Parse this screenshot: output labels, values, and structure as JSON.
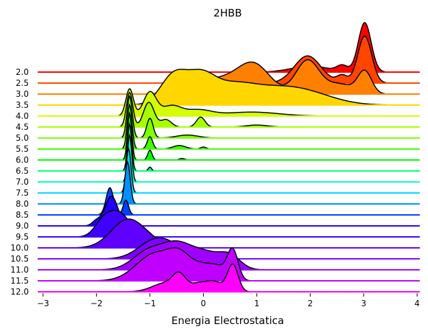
{
  "chart_data": {
    "type": "area",
    "subtype": "ridgeline",
    "title": "2HBB",
    "xlabel": "Energia Electrostatica",
    "ylabel": "",
    "xlim": [
      -3.1,
      4.05
    ],
    "xticks": [
      -3,
      -2,
      -1,
      0,
      1,
      2,
      3,
      4
    ],
    "xtick_labels": [
      "−3",
      "−2",
      "−1",
      "0",
      "1",
      "2",
      "3",
      "4"
    ],
    "grid": false,
    "legend": "none",
    "series": [
      {
        "name": "2.0",
        "color": "#ff0000",
        "peaks": [
          [
            2.0,
            0.35,
            0.12
          ],
          [
            3.02,
            0.12,
            1.0
          ],
          [
            2.6,
            0.1,
            0.12
          ]
        ]
      },
      {
        "name": "2.5",
        "color": "#ff4500",
        "peaks": [
          [
            1.95,
            0.25,
            0.55
          ],
          [
            3.02,
            0.13,
            0.95
          ],
          [
            2.6,
            0.1,
            0.15
          ]
        ]
      },
      {
        "name": "3.0",
        "color": "#ff8000",
        "peaks": [
          [
            0.25,
            0.45,
            0.3
          ],
          [
            0.95,
            0.3,
            0.55
          ],
          [
            1.95,
            0.22,
            0.68
          ],
          [
            2.55,
            0.25,
            0.2
          ],
          [
            3.02,
            0.13,
            0.45
          ]
        ]
      },
      {
        "name": "3.5",
        "color": "#ffd700",
        "peaks": [
          [
            -0.55,
            0.25,
            0.6
          ],
          [
            -0.05,
            0.25,
            0.45
          ],
          [
            0.5,
            0.45,
            0.38
          ],
          [
            1.45,
            0.55,
            0.3
          ],
          [
            2.1,
            0.5,
            0.12
          ]
        ]
      },
      {
        "name": "4.0",
        "color": "#d4ff00",
        "peaks": [
          [
            -1.38,
            0.07,
            0.55
          ],
          [
            -1.0,
            0.12,
            0.48
          ],
          [
            -0.6,
            0.18,
            0.2
          ],
          [
            -0.1,
            0.25,
            0.12
          ],
          [
            0.9,
            0.5,
            0.08
          ]
        ]
      },
      {
        "name": "4.5",
        "color": "#a8ff00",
        "peaks": [
          [
            -1.38,
            0.06,
            0.7
          ],
          [
            -1.02,
            0.1,
            0.5
          ],
          [
            -0.7,
            0.1,
            0.15
          ],
          [
            -0.05,
            0.08,
            0.2
          ],
          [
            1.0,
            0.2,
            0.04
          ]
        ]
      },
      {
        "name": "5.0",
        "color": "#7fff00",
        "peaks": [
          [
            -1.38,
            0.05,
            0.85
          ],
          [
            -1.0,
            0.06,
            0.4
          ],
          [
            -0.3,
            0.2,
            0.06
          ]
        ]
      },
      {
        "name": "5.5",
        "color": "#40ff00",
        "peaks": [
          [
            -1.38,
            0.045,
            0.9
          ],
          [
            -1.0,
            0.05,
            0.25
          ],
          [
            -0.45,
            0.12,
            0.07
          ],
          [
            0.0,
            0.05,
            0.04
          ]
        ]
      },
      {
        "name": "6.0",
        "color": "#00ff00",
        "peaks": [
          [
            -1.38,
            0.04,
            0.95
          ],
          [
            -1.0,
            0.04,
            0.2
          ],
          [
            -0.4,
            0.05,
            0.03
          ]
        ]
      },
      {
        "name": "6.5",
        "color": "#00ff80",
        "peaks": [
          [
            -1.38,
            0.04,
            0.95
          ],
          [
            -1.0,
            0.03,
            0.08
          ]
        ]
      },
      {
        "name": "7.0",
        "color": "#00ffc0",
        "peaks": [
          [
            -1.38,
            0.04,
            0.95
          ]
        ]
      },
      {
        "name": "7.5",
        "color": "#00d8ff",
        "peaks": [
          [
            -1.4,
            0.045,
            0.9
          ]
        ]
      },
      {
        "name": "8.0",
        "color": "#0090ff",
        "peaks": [
          [
            -1.42,
            0.05,
            0.85
          ]
        ]
      },
      {
        "name": "8.5",
        "color": "#0040ff",
        "peaks": [
          [
            -1.75,
            0.07,
            0.55
          ],
          [
            -1.45,
            0.05,
            0.3
          ]
        ]
      },
      {
        "name": "9.0",
        "color": "#2000ff",
        "peaks": [
          [
            -1.72,
            0.12,
            0.6
          ],
          [
            -2.0,
            0.08,
            0.1
          ]
        ]
      },
      {
        "name": "9.5",
        "color": "#4000ff",
        "peaks": [
          [
            -1.6,
            0.22,
            0.5
          ],
          [
            -1.9,
            0.15,
            0.2
          ]
        ]
      },
      {
        "name": "10.0",
        "color": "#6000ff",
        "peaks": [
          [
            -1.45,
            0.3,
            0.5
          ],
          [
            -1.1,
            0.3,
            0.15
          ]
        ]
      },
      {
        "name": "10.5",
        "color": "#8000ff",
        "peaks": [
          [
            -0.95,
            0.3,
            0.3
          ],
          [
            -0.6,
            0.3,
            0.2
          ]
        ]
      },
      {
        "name": "11.0",
        "color": "#a000ff",
        "peaks": [
          [
            -1.0,
            0.3,
            0.4
          ],
          [
            -0.5,
            0.25,
            0.4
          ],
          [
            0.0,
            0.3,
            0.35
          ],
          [
            0.5,
            0.2,
            0.25
          ]
        ]
      },
      {
        "name": "11.5",
        "color": "#c000ff",
        "peaks": [
          [
            -0.9,
            0.35,
            0.55
          ],
          [
            -0.45,
            0.2,
            0.35
          ],
          [
            0.0,
            0.25,
            0.3
          ],
          [
            0.55,
            0.1,
            0.6
          ],
          [
            0.3,
            0.15,
            0.15
          ]
        ]
      },
      {
        "name": "12.0",
        "color": "#ff00ff",
        "peaks": [
          [
            -0.7,
            0.25,
            0.18
          ],
          [
            -0.45,
            0.12,
            0.28
          ],
          [
            -0.1,
            0.15,
            0.15
          ],
          [
            0.55,
            0.1,
            0.55
          ],
          [
            0.2,
            0.15,
            0.2
          ]
        ]
      }
    ]
  }
}
